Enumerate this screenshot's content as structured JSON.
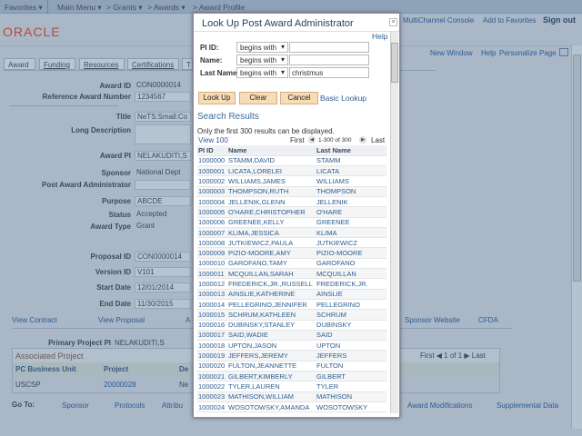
{
  "topbar": {
    "favorites": "Favorites ▾",
    "main_menu": "Main Menu ▾",
    "grants": "> Grants ▾",
    "awards": "> Awards ▾",
    "award_profile": "> Award Profile"
  },
  "header": {
    "logo": "ORACLE",
    "multichannel": "MultiChannel Console",
    "add_favorites": "Add to Favorites",
    "sign_out": "Sign out",
    "new_window": "New Window",
    "help": "Help",
    "personalize": "Personalize Page"
  },
  "tabs": [
    "Award",
    "Funding",
    "Resources",
    "Certifications",
    "T"
  ],
  "form": {
    "award_id": {
      "label": "Award ID",
      "value": "CON0000014"
    },
    "ref_award": {
      "label": "Reference Award Number",
      "value": "1234567"
    },
    "title": {
      "label": "Title",
      "value": "NeTS:Small:Co"
    },
    "long_desc": {
      "label": "Long Description",
      "value": ""
    },
    "award_pi": {
      "label": "Award PI",
      "value": "NELAKUDITI,S"
    },
    "sponsor": {
      "label": "Sponsor",
      "value": "National Dept"
    },
    "post_admin": {
      "label": "Post Award Administrator",
      "value": ""
    },
    "purpose": {
      "label": "Purpose",
      "value": "ABCDE"
    },
    "status": {
      "label": "Status",
      "value": "Accepted"
    },
    "award_type": {
      "label": "Award Type",
      "value": "Grant"
    },
    "proposal_id": {
      "label": "Proposal ID",
      "value": "CON0000014"
    },
    "version_id": {
      "label": "Version ID",
      "value": "V101"
    },
    "start_date": {
      "label": "Start Date",
      "value": "12/01/2014"
    },
    "end_date": {
      "label": "End Date",
      "value": "11/30/2015"
    }
  },
  "links": {
    "view_contract": "View Contract",
    "view_proposal": "View Proposal",
    "a": "A",
    "sponsor_website": "Sponsor Website",
    "cfda": "CFDA"
  },
  "project": {
    "pi_label": "Primary Project PI",
    "pi_value": "NELAKUDITI,S",
    "grid_title": "Associated Project",
    "nav": "First ◀ 1 of 1 ▶ Last",
    "cols": [
      "PC Business Unit",
      "Project",
      "De"
    ],
    "row": [
      "USCSP",
      "20000028",
      "Ne"
    ]
  },
  "goto": {
    "label": "Go To:",
    "items": [
      "Sponsor",
      "Protocols",
      "Attribu",
      "Award Modifications",
      "Supplemental Data"
    ]
  },
  "modal": {
    "title": "Look Up Post Award Administrator",
    "help": "Help",
    "fields": [
      {
        "label": "PI ID:",
        "op": "begins with",
        "value": ""
      },
      {
        "label": "Name:",
        "op": "begins with",
        "value": ""
      },
      {
        "label": "Last Name:",
        "op": "begins with",
        "value": "christmus"
      }
    ],
    "buttons": {
      "lookup": "Look Up",
      "clear": "Clear",
      "cancel": "Cancel",
      "basic": "Basic Lookup"
    },
    "results_title": "Search Results",
    "note": "Only the first 300 results can be displayed.",
    "view100": "View 100",
    "first": "First",
    "range": "1-300 of 300",
    "last": "Last",
    "cols": [
      "PI ID",
      "Name",
      "Last Name"
    ],
    "rows": [
      [
        "1000000",
        "STAMM,DAVID",
        "STAMM"
      ],
      [
        "1000001",
        "LICATA,LORELEI",
        "LICATA"
      ],
      [
        "1000002",
        "WILLIAMS,JAMES",
        "WILLIAMS"
      ],
      [
        "1000003",
        "THOMPSON,RUTH",
        "THOMPSON"
      ],
      [
        "1000004",
        "JELLENIK,GLENN",
        "JELLENIK"
      ],
      [
        "1000005",
        "O'HARE,CHRISTOPHER",
        "O'HARE"
      ],
      [
        "1000006",
        "GREENEE,KELLY",
        "GREENEE"
      ],
      [
        "1000007",
        "KLIMA,JESSICA",
        "KLIMA"
      ],
      [
        "1000008",
        "JUTKIEWICZ,PAULA",
        "JUTKIEWICZ"
      ],
      [
        "1000009",
        "PIZIO-MOORE,AMY",
        "PIZIO-MOORE"
      ],
      [
        "1000010",
        "GAROFANO,TAMY",
        "GAROFANO"
      ],
      [
        "1000011",
        "MCQUILLAN,SARAH",
        "MCQUILLAN"
      ],
      [
        "1000012",
        "FREDERICK,JR.,RUSSELL",
        "FREDERICK,JR."
      ],
      [
        "1000013",
        "AINSLIE,KATHERINE",
        "AINSLIE"
      ],
      [
        "1000014",
        "PELLEGRINO,JENNIFER",
        "PELLEGRINO"
      ],
      [
        "1000015",
        "SCHRUM,KATHLEEN",
        "SCHRUM"
      ],
      [
        "1000016",
        "DUBINSKY,STANLEY",
        "DUBINSKY"
      ],
      [
        "1000017",
        "SAID,WADIE",
        "SAID"
      ],
      [
        "1000018",
        "UPTON,JASON",
        "UPTON"
      ],
      [
        "1000019",
        "JEFFERS,JEREMY",
        "JEFFERS"
      ],
      [
        "1000020",
        "FULTON,JEANNETTE",
        "FULTON"
      ],
      [
        "1000021",
        "GILBERT,KIMBERLY",
        "GILBERT"
      ],
      [
        "1000022",
        "TYLER,LAUREN",
        "TYLER"
      ],
      [
        "1000023",
        "MATHISON,WILLIAM",
        "MATHISON"
      ],
      [
        "1000024",
        "WOSOTOWSKY,AMANDA",
        "WOSOTOWSKY"
      ]
    ]
  }
}
